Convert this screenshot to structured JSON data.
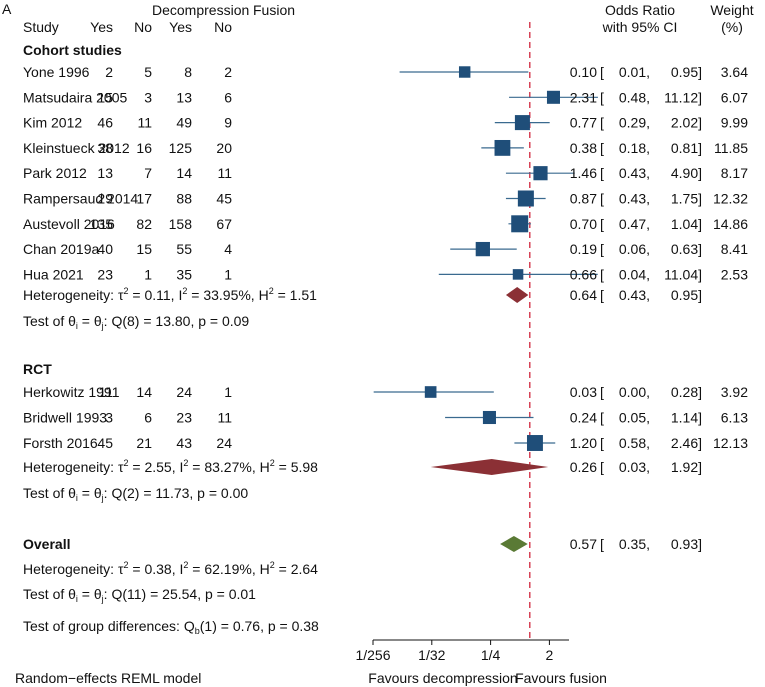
{
  "chart_data": {
    "type": "forest",
    "panel_label": "A",
    "headers": {
      "study": "Study",
      "group1": "Decompression",
      "group2": "Fusion",
      "yes": "Yes",
      "no": "No",
      "effect_line1": "Odds Ratio",
      "effect_line2": "with 95% CI",
      "weight_line1": "Weight",
      "weight_line2": "(%)"
    },
    "groups": [
      {
        "name": "Cohort studies",
        "studies": [
          {
            "study": "Yone 1996",
            "d_yes": "2",
            "d_no": "5",
            "f_yes": "8",
            "f_no": "2",
            "or": 0.1,
            "lo": 0.01,
            "hi": 0.95,
            "or_text": "0.10",
            "lo_text": "0.01,",
            "hi_text": "0.95]",
            "weight": "3.64"
          },
          {
            "study": "Matsudaira 2005",
            "d_yes": "15",
            "d_no": "3",
            "f_yes": "13",
            "f_no": "6",
            "or": 2.31,
            "lo": 0.48,
            "hi": 11.12,
            "or_text": "2.31",
            "lo_text": "0.48,",
            "hi_text": "11.12]",
            "weight": "6.07"
          },
          {
            "study": "Kim 2012",
            "d_yes": "46",
            "d_no": "11",
            "f_yes": "49",
            "f_no": "9",
            "or": 0.77,
            "lo": 0.29,
            "hi": 2.02,
            "or_text": "0.77",
            "lo_text": "0.29,",
            "hi_text": "2.02]",
            "weight": "9.99"
          },
          {
            "study": "Kleinstueck 2012",
            "d_yes": "38",
            "d_no": "16",
            "f_yes": "125",
            "f_no": "20",
            "or": 0.38,
            "lo": 0.18,
            "hi": 0.81,
            "or_text": "0.38",
            "lo_text": "0.18,",
            "hi_text": "0.81]",
            "weight": "11.85"
          },
          {
            "study": "Park 2012",
            "d_yes": "13",
            "d_no": "7",
            "f_yes": "14",
            "f_no": "11",
            "or": 1.46,
            "lo": 0.43,
            "hi": 4.9,
            "or_text": "1.46",
            "lo_text": "0.43,",
            "hi_text": "4.90]",
            "weight": "8.17"
          },
          {
            "study": "Rampersaud 2014",
            "d_yes": "29",
            "d_no": "17",
            "f_yes": "88",
            "f_no": "45",
            "or": 0.87,
            "lo": 0.43,
            "hi": 1.75,
            "or_text": "0.87",
            "lo_text": "0.43,",
            "hi_text": "1.75]",
            "weight": "12.32"
          },
          {
            "study": "Austevoll 2016",
            "d_yes": "135",
            "d_no": "82",
            "f_yes": "158",
            "f_no": "67",
            "or": 0.7,
            "lo": 0.47,
            "hi": 1.04,
            "or_text": "0.70",
            "lo_text": "0.47,",
            "hi_text": "1.04]",
            "weight": "14.86"
          },
          {
            "study": "Chan 2019a",
            "d_yes": "40",
            "d_no": "15",
            "f_yes": "55",
            "f_no": "4",
            "or": 0.19,
            "lo": 0.06,
            "hi": 0.63,
            "or_text": "0.19",
            "lo_text": "0.06,",
            "hi_text": "0.63]",
            "weight": "8.41"
          },
          {
            "study": "Hua 2021",
            "d_yes": "23",
            "d_no": "1",
            "f_yes": "35",
            "f_no": "1",
            "or": 0.66,
            "lo": 0.04,
            "hi": 11.04,
            "or_text": "0.66",
            "lo_text": "0.04,",
            "hi_text": "11.04]",
            "weight": "2.53"
          }
        ],
        "pooled": {
          "or": 0.64,
          "lo": 0.43,
          "hi": 0.95,
          "or_text": "0.64",
          "lo_text": "0.43,",
          "hi_text": "0.95]",
          "color": "#8b3035"
        },
        "heterogeneity": {
          "prefix": "Heterogeneity: τ",
          "tau2": " = 0.11, I",
          "i2": " = 33.95%, H",
          "h2": " = 1.51"
        },
        "test": {
          "prefix": "Test of θ",
          "mid": " = θ",
          "tail": ": Q(8) = 13.80, p = 0.09"
        }
      },
      {
        "name": "RCT",
        "studies": [
          {
            "study": "Herkowitz 1991",
            "d_yes": "11",
            "d_no": "14",
            "f_yes": "24",
            "f_no": "1",
            "or": 0.03,
            "lo": 0.004,
            "hi": 0.28,
            "or_text": "0.03",
            "lo_text": "0.00,",
            "hi_text": "0.28]",
            "weight": "3.92"
          },
          {
            "study": "Bridwell  1993",
            "d_yes": "3",
            "d_no": "6",
            "f_yes": "23",
            "f_no": "11",
            "or": 0.24,
            "lo": 0.05,
            "hi": 1.14,
            "or_text": "0.24",
            "lo_text": "0.05,",
            "hi_text": "1.14]",
            "weight": "6.13"
          },
          {
            "study": "Forsth 2016",
            "d_yes": "45",
            "d_no": "21",
            "f_yes": "43",
            "f_no": "24",
            "or": 1.2,
            "lo": 0.58,
            "hi": 2.46,
            "or_text": "1.20",
            "lo_text": "0.58,",
            "hi_text": "2.46]",
            "weight": "12.13"
          }
        ],
        "pooled": {
          "or": 0.26,
          "lo": 0.03,
          "hi": 1.92,
          "or_text": "0.26",
          "lo_text": "0.03,",
          "hi_text": "1.92]",
          "color": "#8b3035"
        },
        "heterogeneity": {
          "prefix": "Heterogeneity: τ",
          "tau2": " = 2.55, I",
          "i2": " = 83.27%, H",
          "h2": " = 5.98"
        },
        "test": {
          "prefix": "Test of θ",
          "mid": " = θ",
          "tail": ": Q(2) = 11.73, p = 0.00"
        }
      }
    ],
    "overall": {
      "name": "Overall",
      "or": 0.57,
      "lo": 0.35,
      "hi": 0.93,
      "or_text": "0.57",
      "lo_text": "0.35,",
      "hi_text": "0.93]",
      "color": "#5a7a35",
      "heterogeneity": {
        "prefix": "Heterogeneity: τ",
        "tau2": " = 0.38, I",
        "i2": " = 62.19%, H",
        "h2": " = 2.64"
      },
      "test": {
        "prefix": "Test of θ",
        "mid": " = θ",
        "tail": ": Q(11) = 25.54, p = 0.01"
      },
      "group_diff": {
        "prefix": "Test of group differences: Q",
        "sub": "b",
        "tail": "(1) = 0.76, p = 0.38"
      }
    },
    "x_axis": {
      "scale": "log2",
      "xlim": [
        0.00390625,
        4
      ],
      "ticks": [
        {
          "value": 0.00390625,
          "label": "1/256"
        },
        {
          "value": 0.03125,
          "label": "1/32"
        },
        {
          "value": 0.25,
          "label": "1/4"
        },
        {
          "value": 2,
          "label": "2"
        }
      ],
      "reference_value": 1,
      "left_caption": "Favours decompression",
      "right_caption": "Favours fusion"
    },
    "model_note": "Random−effects REML model",
    "colors": {
      "marker": "#1f4e79",
      "ci_line": "#3a6a8f",
      "reference": "#d0243b",
      "text": "#111111"
    }
  }
}
